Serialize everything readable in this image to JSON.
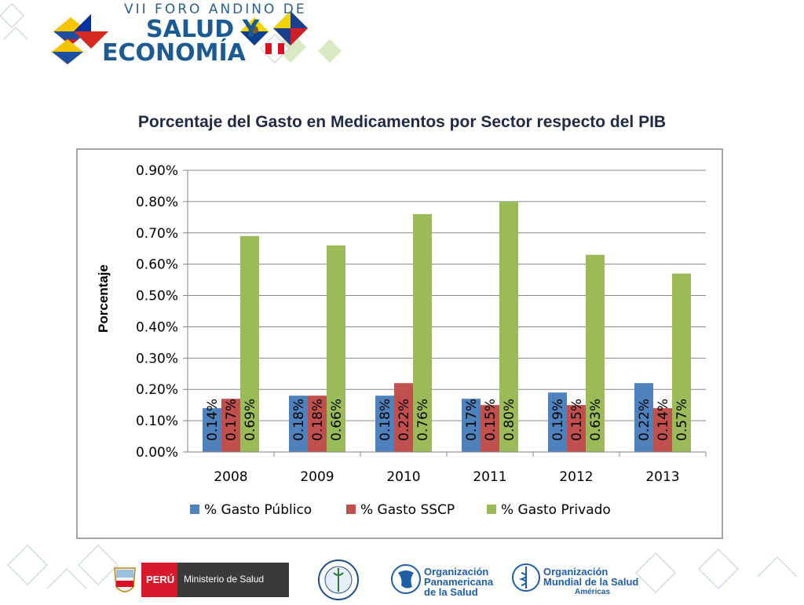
{
  "header": {
    "forum_top": "VII FORO ANDINO DE",
    "forum_line1": "SALUD Y",
    "forum_line2": "ECONOMÍA"
  },
  "page_title": "Porcentaje del Gasto en Medicamentos por Sector respecto del PIB",
  "chart_data": {
    "type": "bar",
    "title": "",
    "xlabel": "",
    "ylabel": "Porcentaje",
    "categories": [
      "2008",
      "2009",
      "2010",
      "2011",
      "2012",
      "2013"
    ],
    "series": [
      {
        "name": "% Gasto Público",
        "values": [
          0.14,
          0.18,
          0.18,
          0.17,
          0.19,
          0.22
        ],
        "labels": [
          "0.14%",
          "0.18%",
          "0.18%",
          "0.17%",
          "0.19%",
          "0.22%"
        ],
        "color": "#4f81bd"
      },
      {
        "name": "% Gasto SSCP",
        "values": [
          0.17,
          0.18,
          0.22,
          0.15,
          0.15,
          0.14
        ],
        "labels": [
          "0.17%",
          "0.18%",
          "0.22%",
          "0.15%",
          "0.15%",
          "0.14%"
        ],
        "color": "#c0504d"
      },
      {
        "name": "% Gasto Privado",
        "values": [
          0.69,
          0.66,
          0.76,
          0.8,
          0.63,
          0.57
        ],
        "labels": [
          "0.69%",
          "0.66%",
          "0.76%",
          "0.80%",
          "0.63%",
          "0.57%"
        ],
        "color": "#9bbb59"
      }
    ],
    "ylim": [
      0,
      0.9
    ],
    "yticks": [
      "0.00%",
      "0.10%",
      "0.20%",
      "0.30%",
      "0.40%",
      "0.50%",
      "0.60%",
      "0.70%",
      "0.80%",
      "0.90%"
    ],
    "grid": true,
    "legend": "bottom"
  },
  "footer": {
    "peru": "PERÚ",
    "ministerio": "Ministerio de Salud",
    "ops_line1": "Organización",
    "ops_line2": "Panamericana",
    "ops_line3": "de la Salud",
    "oms_line1": "Organización",
    "oms_line2": "Mundial de la Salud",
    "oms_line3": "Américas"
  },
  "colors": {
    "title": "#1f2a44",
    "brand_blue": "#1c5a94",
    "deco_green": "#c9dfb0"
  }
}
